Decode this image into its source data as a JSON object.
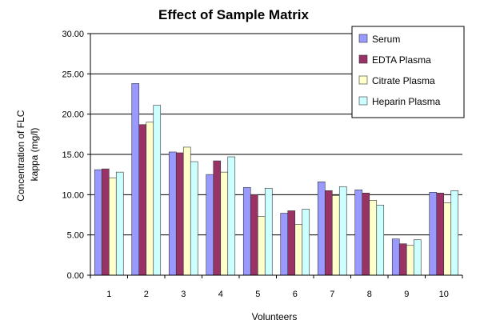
{
  "chart_data": {
    "type": "bar",
    "title": "Effect of Sample Matrix",
    "xlabel": "Volunteers",
    "ylabel": [
      "Concentration of FLC",
      "kappa (mg/l)"
    ],
    "categories": [
      "1",
      "2",
      "3",
      "4",
      "5",
      "6",
      "7",
      "8",
      "9",
      "10"
    ],
    "ylim": [
      0,
      30
    ],
    "yticks": [
      "0.00",
      "5.00",
      "10.00",
      "15.00",
      "20.00",
      "25.00",
      "30.00"
    ],
    "grid": "horizontal",
    "legend_position": "top-right",
    "series": [
      {
        "name": "Serum",
        "color": "#9999FF",
        "values": [
          13.1,
          23.8,
          15.3,
          12.5,
          10.9,
          7.7,
          11.6,
          10.6,
          4.5,
          10.3
        ]
      },
      {
        "name": "EDTA Plasma",
        "color": "#993366",
        "values": [
          13.2,
          18.7,
          15.2,
          14.2,
          10.0,
          8.0,
          10.5,
          10.2,
          3.9,
          10.2
        ]
      },
      {
        "name": "Citrate Plasma",
        "color": "#FFFFCC",
        "values": [
          12.1,
          19.0,
          15.9,
          12.8,
          7.3,
          6.3,
          9.9,
          9.3,
          3.7,
          9.0
        ]
      },
      {
        "name": "Heparin Plasma",
        "color": "#CCFFFF",
        "values": [
          12.8,
          21.1,
          14.1,
          14.7,
          10.8,
          8.2,
          11.0,
          8.7,
          4.4,
          10.5
        ]
      }
    ]
  }
}
